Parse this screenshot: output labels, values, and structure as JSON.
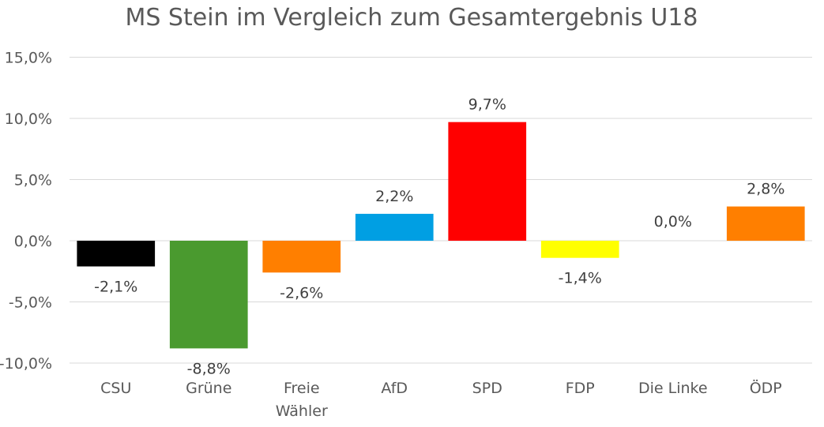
{
  "chart_data": {
    "type": "bar",
    "title": "MS Stein im Vergleich zum Gesamtergebnis U18",
    "categories": [
      [
        "CSU"
      ],
      [
        "Grüne"
      ],
      [
        "Freie",
        "Wähler"
      ],
      [
        "AfD"
      ],
      [
        "SPD"
      ],
      [
        "FDP"
      ],
      [
        "Die Linke"
      ],
      [
        "ÖDP"
      ]
    ],
    "values": [
      -2.1,
      -8.8,
      -2.6,
      2.2,
      9.7,
      -1.4,
      0.0,
      2.8
    ],
    "data_labels": [
      "-2,1%",
      "-8,8%",
      "-2,6%",
      "2,2%",
      "9,7%",
      "-1,4%",
      "0,0%",
      "2,8%"
    ],
    "colors": [
      "#000000",
      "#4a9a2f",
      "#ff7f00",
      "#009fe3",
      "#ff0000",
      "#ffff00",
      "#ffffff",
      "#ff7f00"
    ],
    "ylim": [
      -10,
      15
    ],
    "yticks": [
      15,
      10,
      5,
      0,
      -5,
      -10
    ],
    "ytick_labels": [
      "15,0%",
      "10,0%",
      "5,0%",
      "0,0%",
      "-5,0%",
      "-10,0%"
    ],
    "xlabel": "",
    "ylabel": "",
    "grid": true,
    "legend": "none"
  }
}
